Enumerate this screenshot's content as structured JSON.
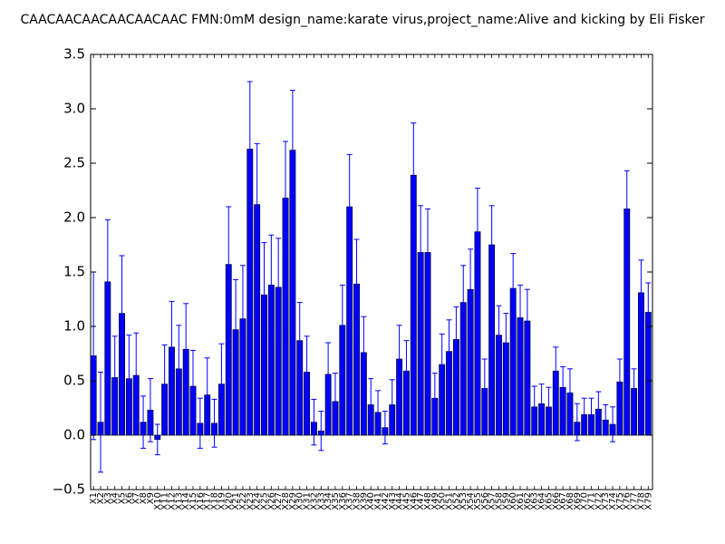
{
  "chart_data": {
    "type": "bar",
    "title": "CAACAACAACAACAACAAC  FMN:0mM  design_name:karate virus,project_name:Alive and kicking by Eli Fisker",
    "xlabel": "",
    "ylabel": "",
    "ylim": [
      -0.5,
      3.5
    ],
    "yticks": [
      "−0.5",
      "0.0",
      "0.5",
      "1.0",
      "1.5",
      "2.0",
      "2.5",
      "3.0",
      "3.5"
    ],
    "grid": false,
    "bar_color": "#0000ff",
    "error_color": "#0000ff",
    "categories": [
      "X1",
      "X2",
      "X3",
      "X4",
      "X5",
      "X6",
      "X7",
      "X8",
      "X9",
      "X10",
      "X11",
      "X12",
      "X13",
      "X14",
      "X15",
      "X16",
      "X17",
      "X18",
      "X19",
      "X20",
      "X21",
      "X22",
      "X23",
      "X24",
      "X25",
      "X26",
      "X27",
      "X28",
      "X29",
      "X30",
      "X31",
      "X32",
      "X33",
      "X34",
      "X35",
      "X36",
      "X37",
      "X38",
      "X39",
      "X40",
      "X41",
      "X42",
      "X43",
      "X44",
      "X45",
      "X46",
      "X47",
      "X48",
      "X49",
      "X50",
      "X51",
      "X52",
      "X53",
      "X54",
      "X55",
      "X56",
      "X57",
      "X58",
      "X59",
      "X60",
      "X61",
      "X62",
      "X63",
      "X64",
      "X65",
      "X66",
      "X67",
      "X68",
      "X69",
      "X70",
      "X71",
      "X72",
      "X73",
      "X74",
      "X75",
      "X76",
      "X77",
      "X78",
      "X79"
    ],
    "values": [
      0.73,
      0.12,
      1.41,
      0.53,
      1.12,
      0.52,
      0.55,
      0.12,
      0.23,
      -0.04,
      0.47,
      0.81,
      0.61,
      0.79,
      0.45,
      0.11,
      0.37,
      0.11,
      0.47,
      1.57,
      0.97,
      1.07,
      2.63,
      2.12,
      1.29,
      1.38,
      1.36,
      2.18,
      2.62,
      0.87,
      0.58,
      0.12,
      0.04,
      0.56,
      0.31,
      1.01,
      2.1,
      1.39,
      0.76,
      0.28,
      0.21,
      0.07,
      0.28,
      0.7,
      0.59,
      2.39,
      1.68,
      1.68,
      0.34,
      0.65,
      0.77,
      0.88,
      1.22,
      1.34,
      1.87,
      0.43,
      1.75,
      0.92,
      0.85,
      1.35,
      1.08,
      1.05,
      0.26,
      0.29,
      0.26,
      0.59,
      0.44,
      0.39,
      0.12,
      0.19,
      0.19,
      0.24,
      0.14,
      0.1,
      0.49,
      2.08,
      0.43,
      1.31,
      1.13
    ],
    "errors": [
      0.77,
      0.46,
      0.57,
      0.38,
      0.53,
      0.4,
      0.39,
      0.24,
      0.29,
      0.14,
      0.36,
      0.42,
      0.4,
      0.42,
      0.33,
      0.23,
      0.34,
      0.22,
      0.37,
      0.53,
      0.46,
      0.49,
      0.62,
      0.56,
      0.48,
      0.46,
      0.45,
      0.52,
      0.55,
      0.35,
      0.33,
      0.21,
      0.18,
      0.29,
      0.26,
      0.37,
      0.48,
      0.41,
      0.33,
      0.24,
      0.2,
      0.15,
      0.23,
      0.31,
      0.28,
      0.48,
      0.43,
      0.4,
      0.23,
      0.28,
      0.29,
      0.3,
      0.34,
      0.37,
      0.4,
      0.27,
      0.36,
      0.27,
      0.27,
      0.32,
      0.3,
      0.29,
      0.19,
      0.18,
      0.18,
      0.22,
      0.19,
      0.22,
      0.17,
      0.15,
      0.15,
      0.16,
      0.14,
      0.16,
      0.21,
      0.35,
      0.18,
      0.3,
      0.27
    ]
  }
}
